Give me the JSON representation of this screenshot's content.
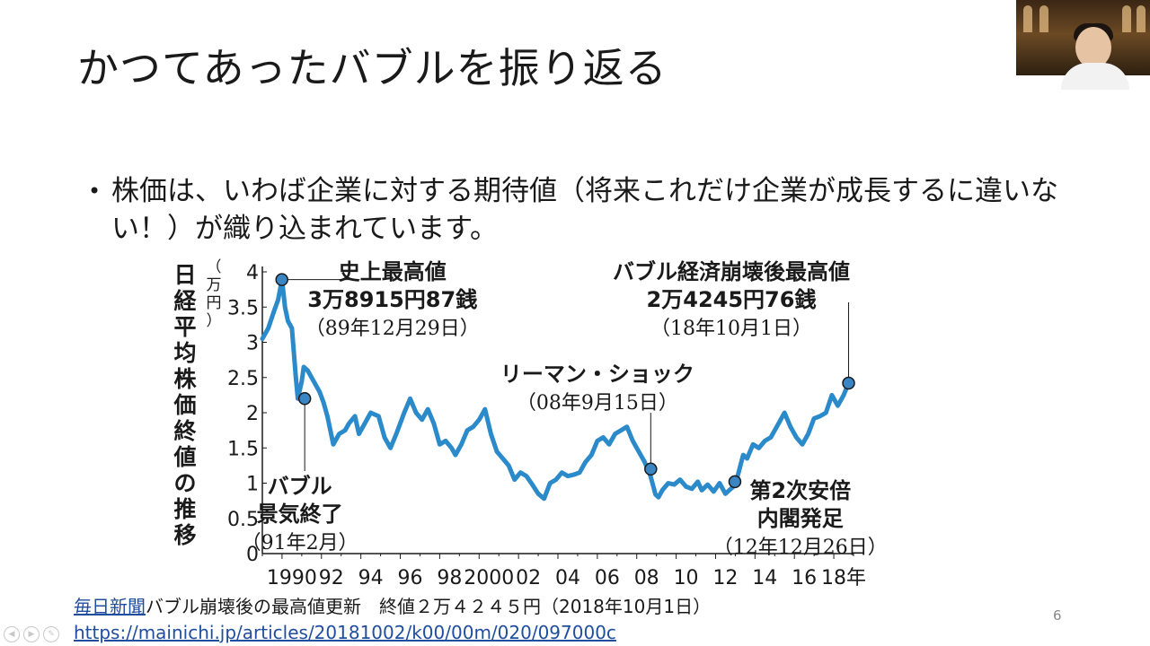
{
  "slide": {
    "title": "かつてあったバブルを振り返る",
    "bullet": "株価は、いわば企業に対する期待値（将来これだけ企業が成長するに違いない！）が織り込まれています。",
    "page_number": "6"
  },
  "source": {
    "link_text": "毎日新聞",
    "description": "バブル崩壊後の最高値更新　終値２万４２４５円（2018年10月1日）",
    "url": "https://mainichi.jp/articles/20181002/k00/00m/020/097000c"
  },
  "colors": {
    "line": "#2b8ac9",
    "marker": "#3a86c4",
    "text": "#1a1a1a",
    "link": "#1f4e9e"
  },
  "chart_data": {
    "type": "line",
    "title": "",
    "ylabel": "日経平均株価終値の推移",
    "yunit": "（万円）",
    "xlabel": "",
    "ylim": [
      0,
      4
    ],
    "xlim": [
      1989.0,
      2019.0
    ],
    "yticks": [
      0,
      0.5,
      1,
      1.5,
      2,
      2.5,
      3,
      3.5,
      4
    ],
    "ytick_labels": [
      "0",
      "0.5",
      "1",
      "1.5",
      "2",
      "2.5",
      "3",
      "3.5",
      "4"
    ],
    "xticks": [
      1990,
      1992,
      1994,
      1996,
      1998,
      2000,
      2002,
      2004,
      2006,
      2008,
      2010,
      2012,
      2014,
      2016,
      2018
    ],
    "xtick_labels": [
      "1990",
      "92",
      "94",
      "96",
      "98",
      "2000",
      "02",
      "04",
      "06",
      "08",
      "10",
      "12",
      "14",
      "16",
      "18年"
    ],
    "series": [
      {
        "name": "日経平均株価終値",
        "x": [
          1989.0,
          1989.3,
          1989.6,
          1989.8,
          1990.0,
          1990.15,
          1990.3,
          1990.5,
          1990.7,
          1990.8,
          1991.0,
          1991.1,
          1991.3,
          1991.6,
          1991.9,
          1992.1,
          1992.3,
          1992.6,
          1992.9,
          1993.2,
          1993.4,
          1993.7,
          1993.9,
          1994.2,
          1994.5,
          1994.9,
          1995.2,
          1995.5,
          1995.8,
          1996.2,
          1996.5,
          1996.8,
          1997.1,
          1997.4,
          1997.7,
          1998.0,
          1998.3,
          1998.6,
          1998.8,
          1999.1,
          1999.4,
          1999.7,
          2000.0,
          2000.3,
          2000.6,
          2000.9,
          2001.2,
          2001.5,
          2001.8,
          2002.1,
          2002.4,
          2002.7,
          2003.0,
          2003.3,
          2003.6,
          2003.9,
          2004.2,
          2004.5,
          2004.8,
          2005.1,
          2005.4,
          2005.7,
          2006.0,
          2006.3,
          2006.6,
          2006.9,
          2007.2,
          2007.5,
          2007.8,
          2008.1,
          2008.4,
          2008.7,
          2008.95,
          2009.1,
          2009.3,
          2009.6,
          2009.9,
          2010.2,
          2010.5,
          2010.8,
          2011.1,
          2011.3,
          2011.6,
          2011.9,
          2012.2,
          2012.5,
          2012.9,
          2013.1,
          2013.4,
          2013.6,
          2013.9,
          2014.2,
          2014.5,
          2014.8,
          2015.2,
          2015.5,
          2015.8,
          2016.1,
          2016.4,
          2016.7,
          2017.0,
          2017.3,
          2017.6,
          2017.9,
          2018.2,
          2018.5,
          2018.75
        ],
        "values": [
          3.05,
          3.2,
          3.45,
          3.6,
          3.89,
          3.5,
          3.3,
          3.2,
          2.5,
          2.2,
          2.45,
          2.65,
          2.6,
          2.45,
          2.3,
          2.15,
          1.95,
          1.55,
          1.7,
          1.75,
          1.85,
          1.95,
          1.7,
          1.85,
          2.0,
          1.95,
          1.65,
          1.5,
          1.7,
          2.0,
          2.2,
          2.0,
          1.9,
          2.05,
          1.85,
          1.55,
          1.6,
          1.5,
          1.4,
          1.55,
          1.75,
          1.8,
          1.9,
          2.05,
          1.7,
          1.45,
          1.35,
          1.25,
          1.05,
          1.15,
          1.1,
          0.98,
          0.85,
          0.78,
          1.0,
          1.05,
          1.15,
          1.1,
          1.12,
          1.15,
          1.3,
          1.4,
          1.6,
          1.65,
          1.55,
          1.7,
          1.75,
          1.8,
          1.6,
          1.45,
          1.3,
          1.1,
          0.84,
          0.8,
          0.9,
          1.0,
          0.98,
          1.05,
          0.95,
          0.92,
          1.02,
          0.9,
          0.98,
          0.88,
          1.0,
          0.85,
          0.95,
          1.08,
          1.4,
          1.35,
          1.55,
          1.5,
          1.6,
          1.65,
          1.85,
          2.0,
          1.8,
          1.65,
          1.55,
          1.7,
          1.92,
          1.95,
          2.0,
          2.25,
          2.1,
          2.25,
          2.42
        ]
      }
    ],
    "markers": [
      {
        "x": 1989.99,
        "y": 3.89
      },
      {
        "x": 1991.15,
        "y": 2.2
      },
      {
        "x": 2008.71,
        "y": 1.2
      },
      {
        "x": 2012.98,
        "y": 1.02
      },
      {
        "x": 2018.75,
        "y": 2.42
      }
    ],
    "annotations": [
      {
        "lines": [
          "史上最高値",
          "3万8915円87銭",
          "（89年12月29日）"
        ],
        "x": 1990.0,
        "y": 3.89
      },
      {
        "lines": [
          "バブル",
          "景気終了",
          "（91年2月）"
        ],
        "x": 1991.15,
        "y": 2.2
      },
      {
        "lines": [
          "リーマン・ショック",
          "（08年9月15日）"
        ],
        "x": 2008.71,
        "y": 1.2
      },
      {
        "lines": [
          "第2次安倍",
          "内閣発足",
          "（12年12月26日）"
        ],
        "x": 2012.98,
        "y": 1.02
      },
      {
        "lines": [
          "バブル経済崩壊後最高値",
          "2万4245円76銭",
          "（18年10月1日）"
        ],
        "x": 2018.75,
        "y": 2.42
      }
    ]
  }
}
